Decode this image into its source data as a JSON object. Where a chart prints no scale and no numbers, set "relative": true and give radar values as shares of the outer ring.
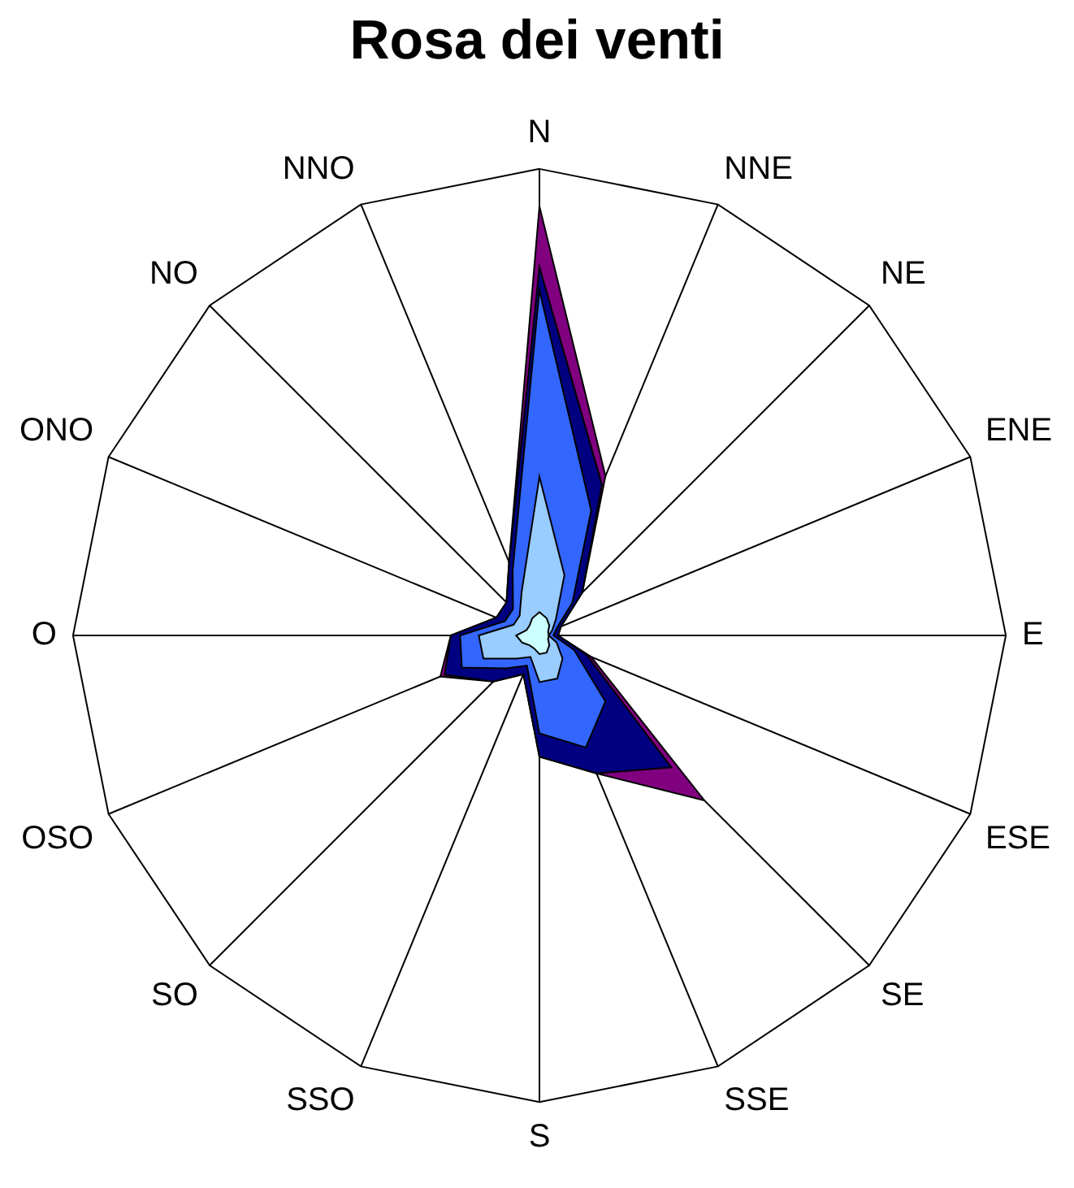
{
  "chart_data": {
    "type": "radar",
    "title": "Rosa dei venti",
    "relative": true,
    "legend": false,
    "categories": [
      "N",
      "NNE",
      "NE",
      "ENE",
      "E",
      "ESE",
      "SE",
      "SSE",
      "S",
      "SSO",
      "SO",
      "OSO",
      "O",
      "ONO",
      "NO",
      "NNO"
    ],
    "series": [
      {
        "color": "#800080",
        "values": [
          0.92,
          0.37,
          0.13,
          0.05,
          0.04,
          0.12,
          0.5,
          0.32,
          0.26,
          0.09,
          0.14,
          0.23,
          0.19,
          0.1,
          0.1,
          0.17
        ]
      },
      {
        "color": "#000080",
        "values": [
          0.79,
          0.35,
          0.13,
          0.05,
          0.04,
          0.11,
          0.4,
          0.32,
          0.26,
          0.09,
          0.14,
          0.22,
          0.19,
          0.1,
          0.1,
          0.17
        ]
      },
      {
        "color": "#3366ff",
        "values": [
          0.74,
          0.29,
          0.1,
          0.04,
          0.03,
          0.08,
          0.2,
          0.26,
          0.21,
          0.07,
          0.1,
          0.18,
          0.17,
          0.08,
          0.08,
          0.15
        ]
      },
      {
        "color": "#99ccff",
        "values": [
          0.34,
          0.14,
          0.05,
          0.03,
          0.02,
          0.04,
          0.07,
          0.1,
          0.1,
          0.05,
          0.07,
          0.13,
          0.13,
          0.06,
          0.06,
          0.1
        ]
      },
      {
        "color": "#ccffff",
        "values": [
          0.05,
          0.04,
          0.03,
          0.02,
          0.02,
          0.02,
          0.03,
          0.04,
          0.04,
          0.03,
          0.03,
          0.04,
          0.05,
          0.03,
          0.03,
          0.04
        ]
      }
    ]
  }
}
